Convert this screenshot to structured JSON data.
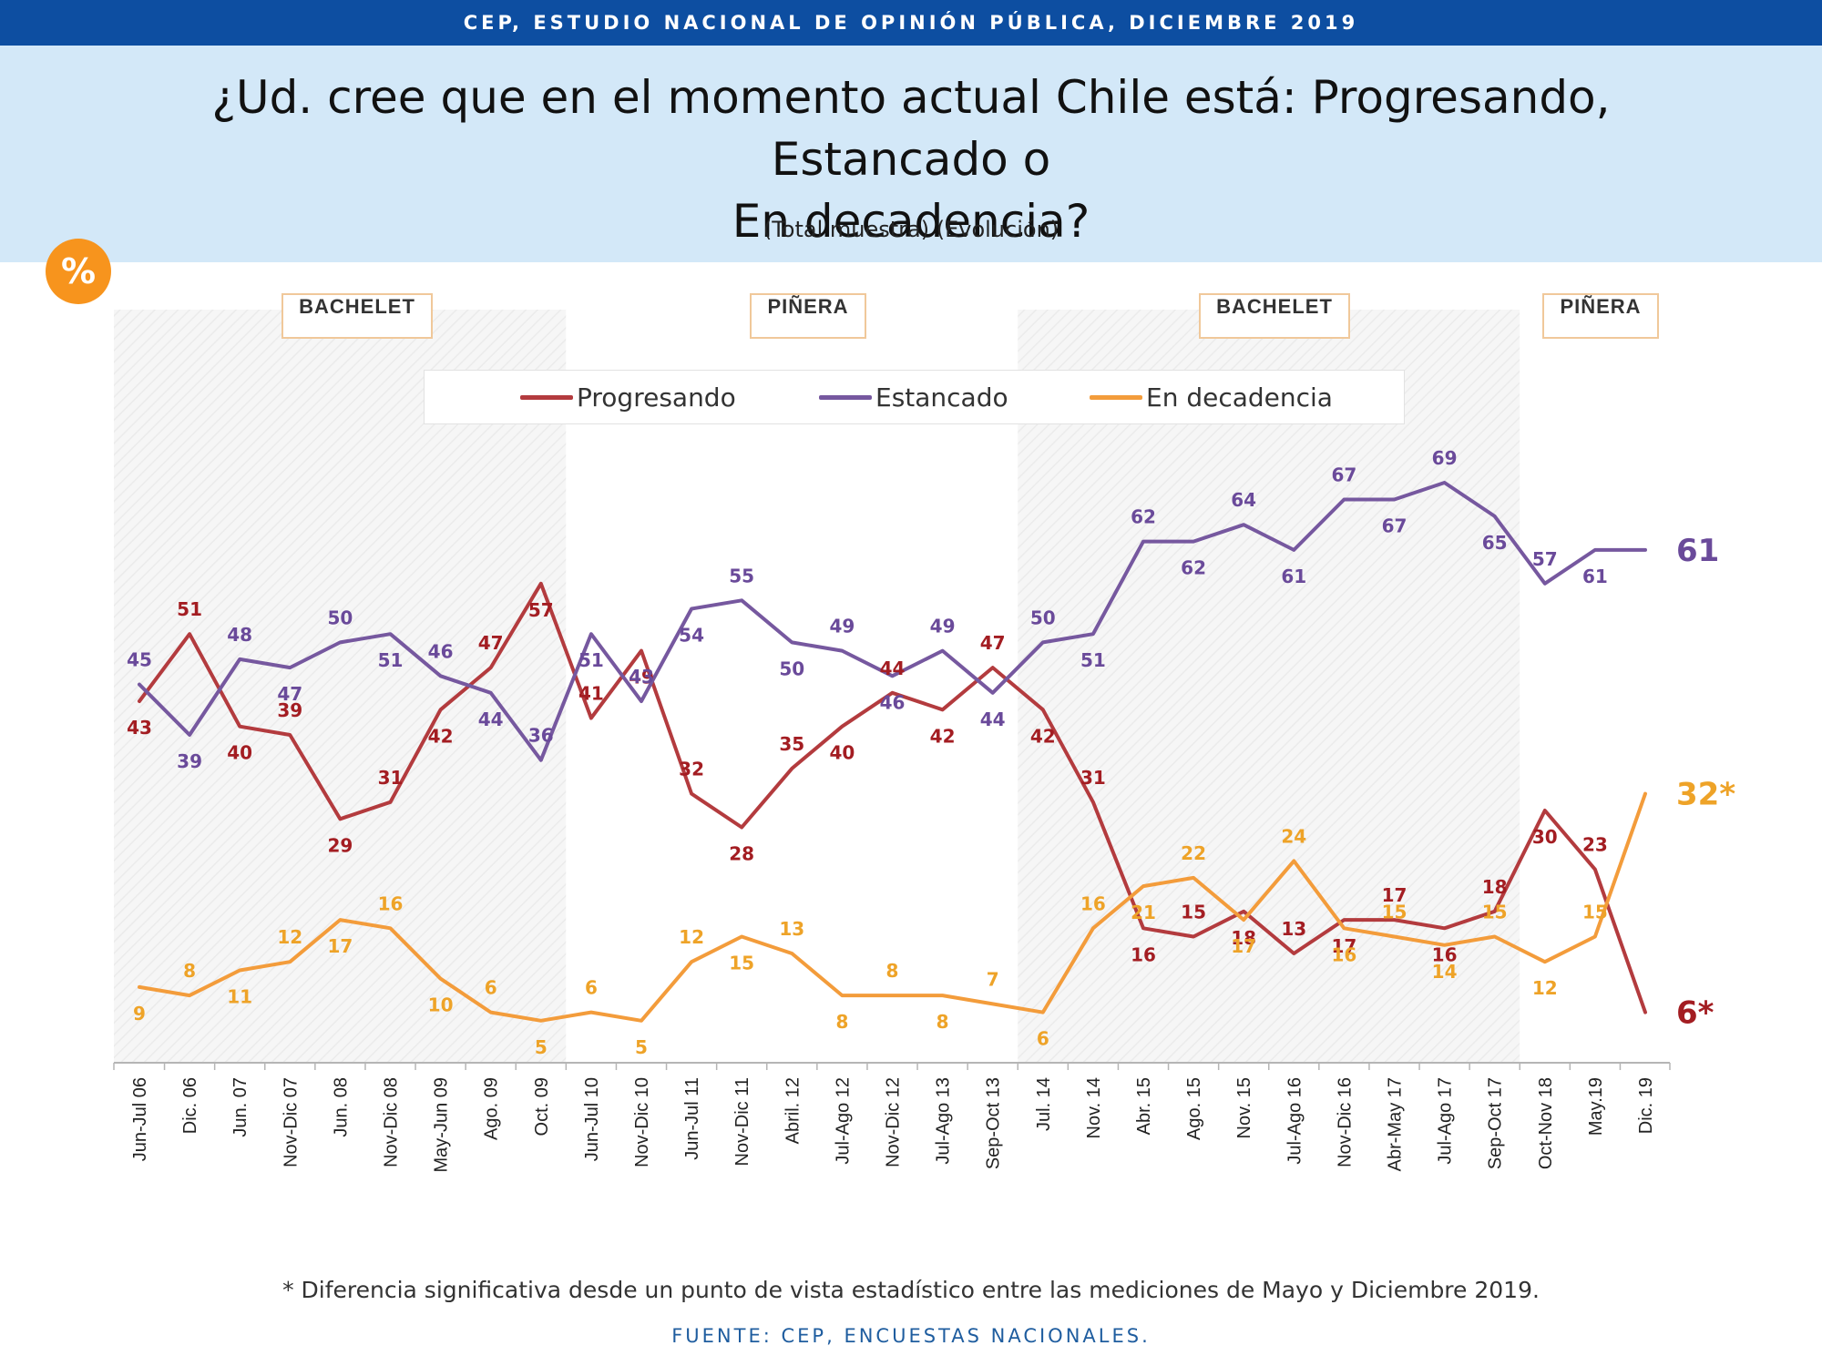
{
  "header": {
    "top_bar": "CEP, ESTUDIO NACIONAL DE OPINIÓN PÚBLICA, DICIEMBRE 2019",
    "title_line1": "¿Ud. cree que en el momento actual Chile está: Progresando, Estancado o",
    "title_line2": "En decadencia?",
    "subtitle": "(Total muestra) (Evolución)",
    "badge": "%"
  },
  "periods": [
    {
      "label": "BACHELET",
      "shaded": true
    },
    {
      "label": "PIÑERA",
      "shaded": false
    },
    {
      "label": "BACHELET",
      "shaded": true
    },
    {
      "label": "PIÑERA",
      "shaded": false
    }
  ],
  "chart_data": {
    "type": "line",
    "x": [
      "Jun-Jul 06",
      "Dic. 06",
      "Jun. 07",
      "Nov-Dic 07",
      "Jun. 08",
      "Nov-Dic 08",
      "May-Jun 09",
      "Ago. 09",
      "Oct. 09",
      "Jun-Jul 10",
      "Nov-Dic 10",
      "Jun-Jul 11",
      "Nov-Dic 11",
      "Abril. 12",
      "Jul-Ago 12",
      "Nov-Dic 12",
      "Jul-Ago 13",
      "Sep-Oct 13",
      "Jul. 14",
      "Nov. 14",
      "Abr. 15",
      "Ago. 15",
      "Nov. 15",
      "Jul-Ago 16",
      "Nov-Dic 16",
      "Abr-May 17",
      "Jul-Ago 17",
      "Sep-Oct 17",
      "Oct-Nov 18",
      "May.19",
      "Dic. 19"
    ],
    "ylim": [
      0,
      100
    ],
    "period_boundaries": [
      "Jun-Jul 06",
      "Jun-Jul 10",
      "Jul. 14",
      "Oct-Nov 18",
      "Dic. 19"
    ],
    "series": [
      {
        "name": "Progresando",
        "color": "#b33b3e",
        "label_color": "#a31d22",
        "values": [
          43,
          51,
          40,
          39,
          29,
          31,
          42,
          47,
          57,
          41,
          49,
          32,
          28,
          35,
          40,
          44,
          42,
          47,
          42,
          31,
          16,
          15,
          18,
          13,
          17,
          17,
          16,
          18,
          30,
          23,
          6
        ],
        "end_label": "6*"
      },
      {
        "name": "Estancado",
        "color": "#76589f",
        "label_color": "#6a4a9a",
        "values": [
          45,
          39,
          48,
          47,
          50,
          51,
          46,
          44,
          36,
          51,
          43,
          54,
          55,
          50,
          49,
          46,
          49,
          44,
          50,
          51,
          62,
          62,
          64,
          61,
          67,
          67,
          69,
          65,
          57,
          61,
          61
        ],
        "end_label": "61"
      },
      {
        "name": "En decadencia",
        "color": "#f39c3b",
        "label_color": "#eea328",
        "values": [
          9,
          8,
          11,
          12,
          17,
          16,
          10,
          6,
          5,
          6,
          5,
          12,
          15,
          13,
          8,
          8,
          8,
          7,
          6,
          16,
          21,
          22,
          17,
          24,
          16,
          15,
          14,
          15,
          12,
          15,
          32
        ],
        "end_label": "32*"
      }
    ]
  },
  "footer": {
    "footnote": "* Diferencia significativa desde un punto de vista estadístico entre las mediciones de Mayo y Diciembre 2019.",
    "source": "FUENTE: CEP, ENCUESTAS NACIONALES."
  }
}
